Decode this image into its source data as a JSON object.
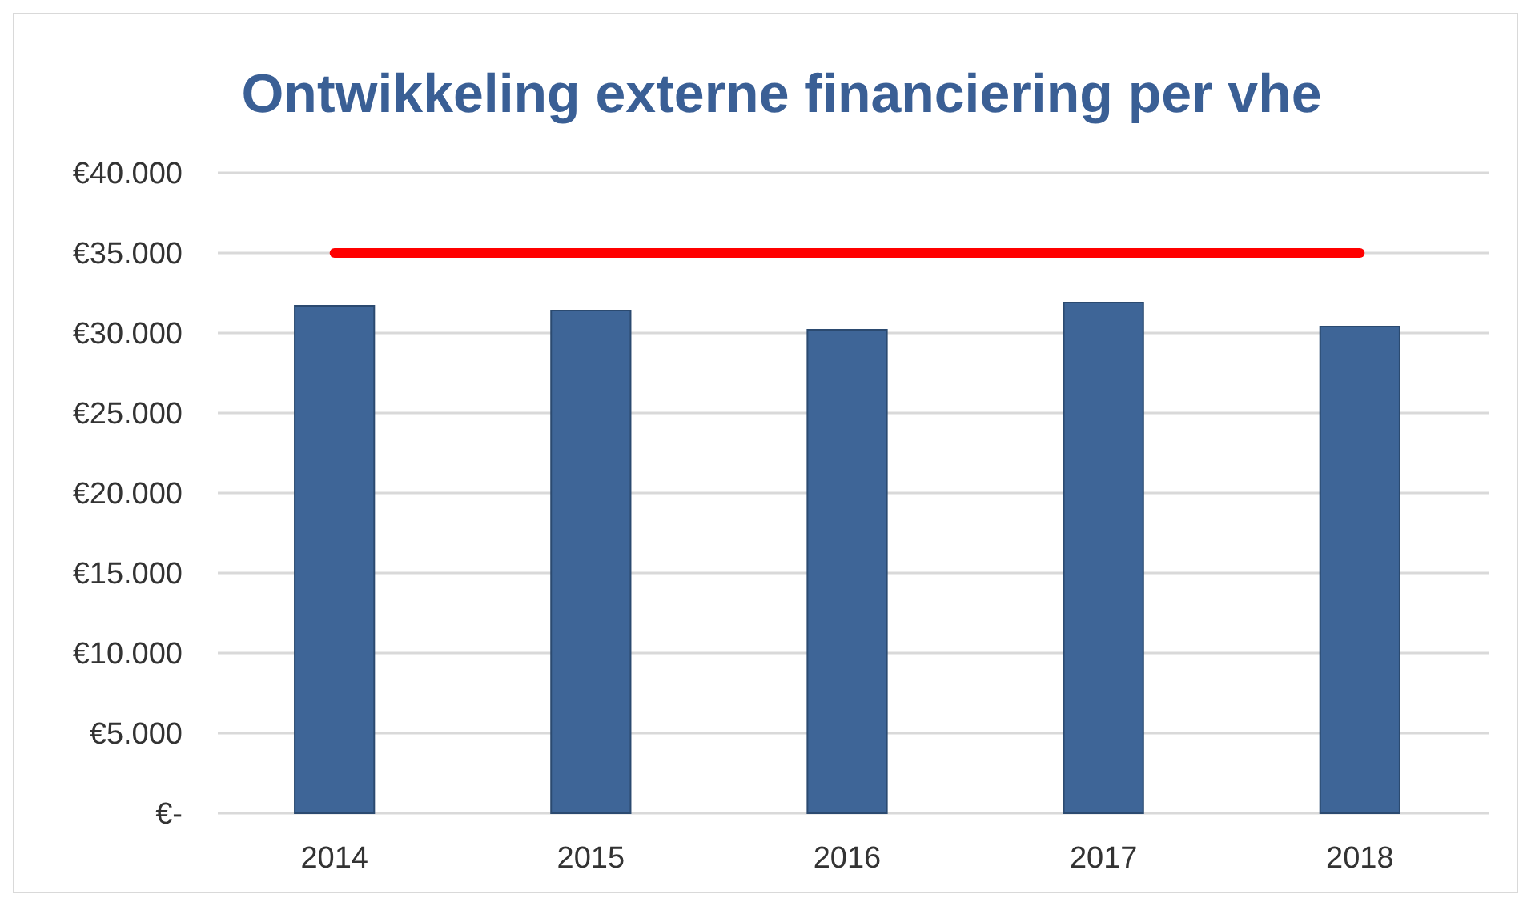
{
  "chart_data": {
    "type": "bar",
    "title": "Ontwikkeling externe financiering per vhe",
    "categories": [
      "2014",
      "2015",
      "2016",
      "2017",
      "2018"
    ],
    "series": [
      {
        "color": "#3e6597",
        "values": [
          31700,
          31400,
          30200,
          31900,
          30400
        ]
      },
      {
        "type": "line",
        "color": "#ff0000",
        "values": [
          35000,
          35000,
          35000,
          35000,
          35000
        ],
        "marker": "none"
      }
    ],
    "ylim": [
      0,
      40000
    ],
    "yticks": [
      {
        "value": 0,
        "label": "€-"
      },
      {
        "value": 5000,
        "label": "€5.000"
      },
      {
        "value": 10000,
        "label": "€10.000"
      },
      {
        "value": 15000,
        "label": "€15.000"
      },
      {
        "value": 20000,
        "label": "€20.000"
      },
      {
        "value": 25000,
        "label": "€25.000"
      },
      {
        "value": 30000,
        "label": "€30.000"
      },
      {
        "value": 35000,
        "label": "€35.000"
      },
      {
        "value": 40000,
        "label": "€40.000"
      }
    ],
    "grid": "y"
  }
}
